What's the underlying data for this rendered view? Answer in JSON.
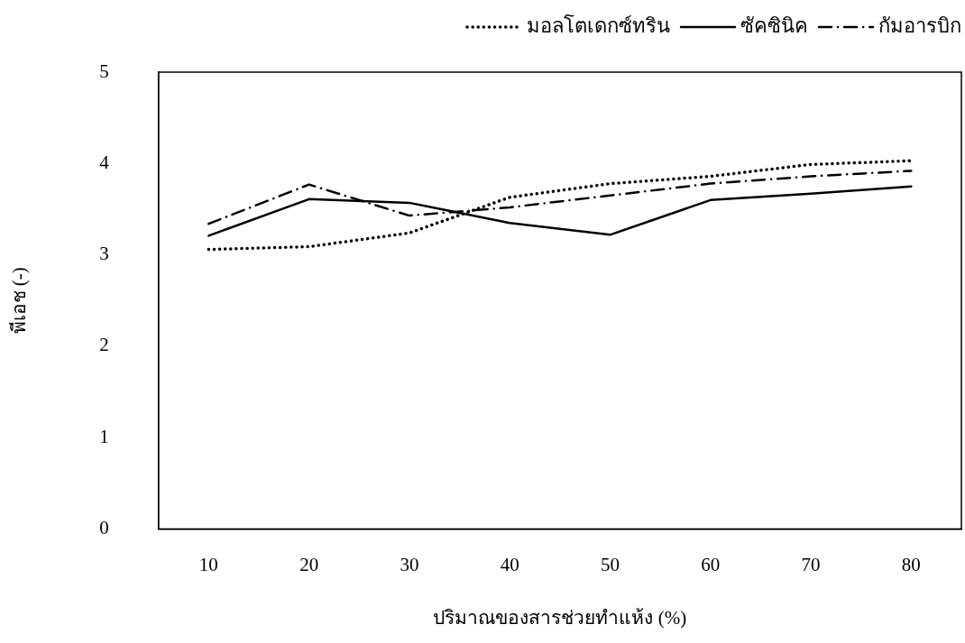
{
  "chart_data": {
    "type": "line",
    "xlabel": "ปริมาณของสารช่วยทำแห้ง (%)",
    "ylabel": "พีเอช (-)",
    "categories": [
      "10",
      "20",
      "30",
      "40",
      "50",
      "60",
      "70",
      "80"
    ],
    "ylim": [
      0,
      5
    ],
    "yticks": [
      0,
      1,
      2,
      3,
      4,
      5
    ],
    "legend": "top right",
    "marker": "none",
    "series": [
      {
        "name": "มอลโตเดกซ์ทริน",
        "color": "#000000",
        "line_style": "dotted",
        "values": [
          3.06,
          3.09,
          3.24,
          3.63,
          3.78,
          3.86,
          3.99,
          4.03
        ]
      },
      {
        "name": "ซัคซินิค",
        "color": "#000000",
        "line_style": "solid",
        "values": [
          3.21,
          3.61,
          3.57,
          3.35,
          3.22,
          3.6,
          3.67,
          3.75
        ]
      },
      {
        "name": "กัมอารบิก",
        "color": "#000000",
        "line_style": "dashdot",
        "values": [
          3.34,
          3.77,
          3.43,
          3.52,
          3.65,
          3.78,
          3.86,
          3.92
        ]
      }
    ]
  }
}
